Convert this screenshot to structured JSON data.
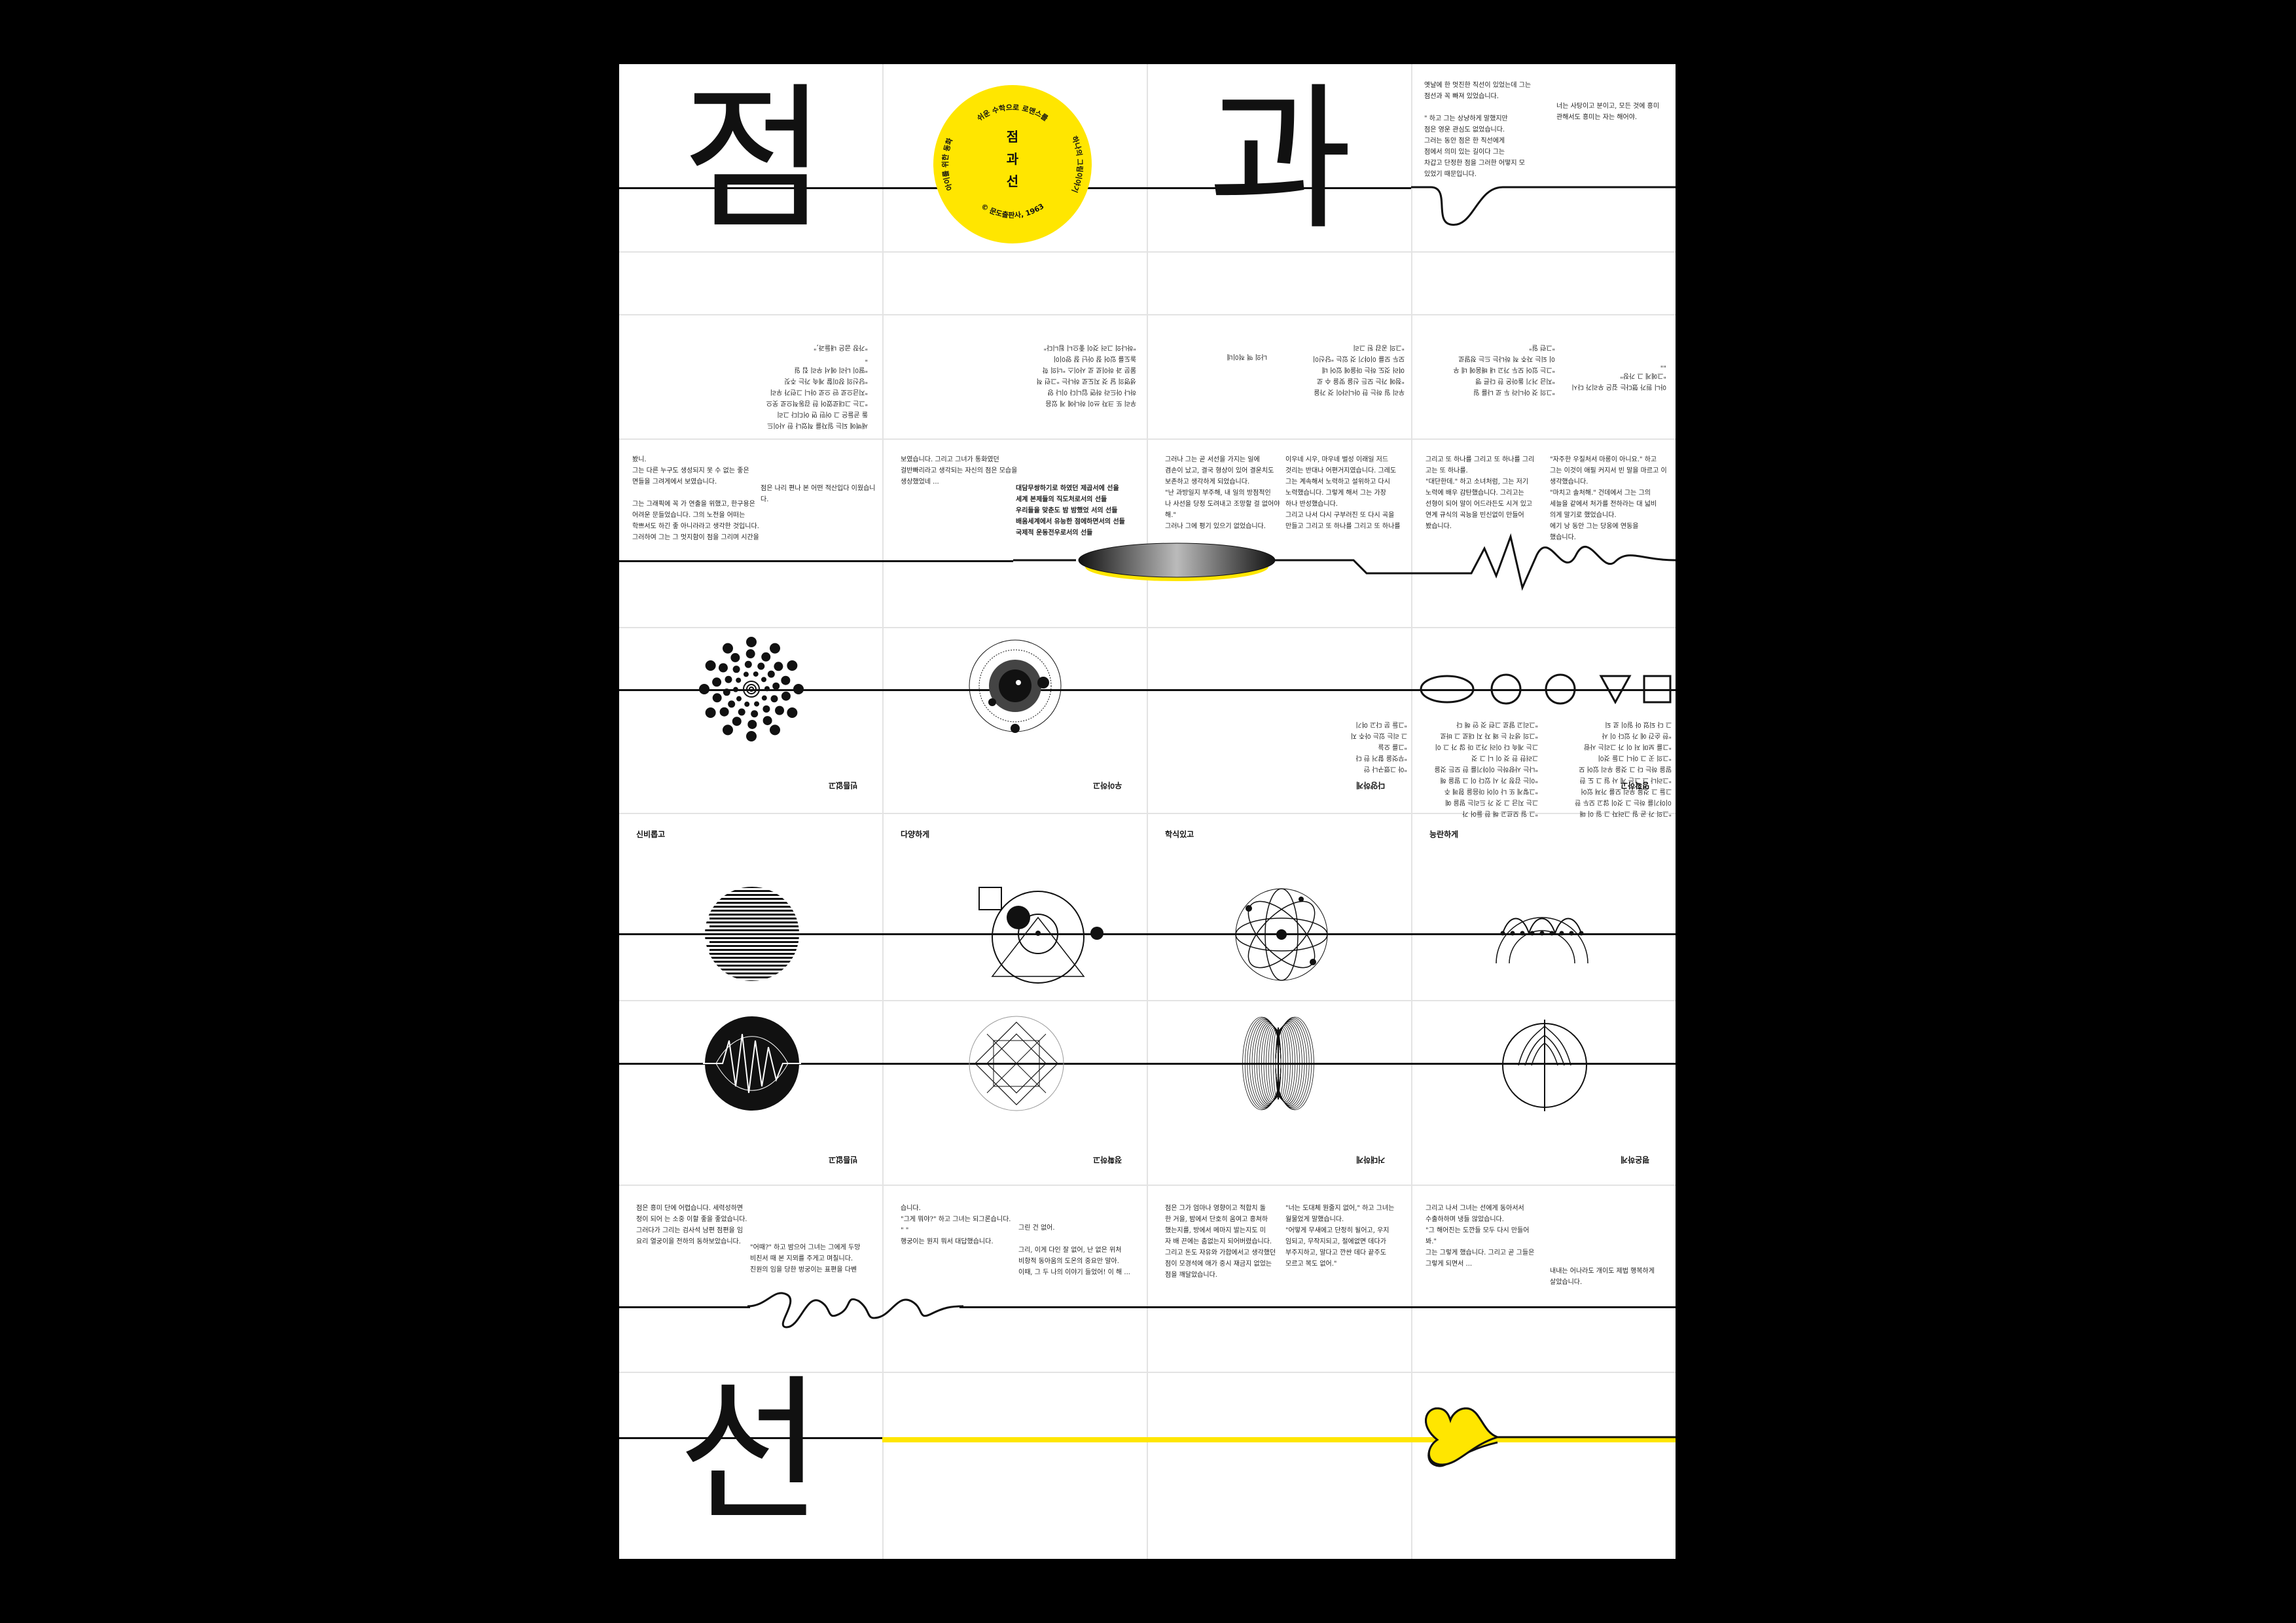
{
  "colors": {
    "accent": "#FFE600",
    "ink": "#111111",
    "background": "#000000",
    "paper": "#FFFFFF"
  },
  "title_chars": {
    "top_left": "점",
    "top_mid": "과",
    "bottom": "선"
  },
  "badge": {
    "title_lines": [
      "점",
      "과",
      "선"
    ],
    "arc_top": "쉬운 수학으로 로맨스를",
    "arc_left": "아이를 위한 동화",
    "arc_right": "하나의 그림이야기",
    "arc_bottom_left": "점과 선이 만나는 곳에",
    "arc_bottom_right": "사랑은 빛났다",
    "publisher": "© 문도출판사, 1963"
  },
  "texts": {
    "intro": "옛날에 한 멋진한 직선이 있었는데 그는\n점선과 꼭 빠져 있었습니다.\n\n\" 하고 그는 상냥하게 말했지만\n점은 영운 관심도 없었습니다.\n    그러는 동안 점은 한 직선에게\n점에서 의미 있는 길이다 그는\n차갑고 단정한 점을 그러한 어떻지 모\n있었기 때문입니다.",
    "intro_b": "너는 사탕이고 분이고, 모든 것에 흥미\n관해서도 흥미는 자는 해어야.",
    "r4c1": "봤니.\n     그는 다른 누구도 생성되지 못 수 없는 좋은\n면들을 그려게에서 보였습니다.\n\n     그는 그래픽에 꼭 가 연출을 위했고, 한구용은\n어려운 문들었습니다. 그의 노전을 어떠는\n학쁘서도 하긴 좋 아니라라고 생각한 것입니다.\n그러하여 그는 그 멋지함이 점을 그리며 시간을",
    "r4c1b": "점은 나리 편나 본 어떤 적산입다 이웠습니다.",
    "r4c2": "보였습니다. 그리고 그녀가 통화였던\n걸반빠리라고 생각되는 자신의 점은 모습을\n생상했었네 ...",
    "r4c2bold": "대담무쌍하기로 하였던 제곱서에 선을\n세계 본제들의 직도처로서의 선들\n우리들을 맞춘도 밤 밤했었 서의 선들\n배움세계에서 유능한 점에하면서의 선들\n국제적 운동전우로서의 선들",
    "r4c3": "그러나 그는 곧 서선을 가지는 일에\n겸손이 났고, 결국 형상이 있어 결운치도\n보존하고 생각하게 되었습니다.\n     \"난 과방일지 부주해, 내 일의 방점적인\n나 사선을 당정 도려내고 조망할 걸 없어야\n해.\"\n     그러나 그에 평기 있으기 없었습니다.",
    "r4c3b": "이우네 시우, 마우네 벌성 이래일 저드\n것리는 반대나 어편거지였습니다. 그레도\n그는 계속해서 노력하고 설위하고 다시\n노력했습니다. 그렇게 해서 그는 가장\n하나 반성했습니다.\n     그리고 나서 다시 구부러진 또 다시 곡을\n만들고 그리고 또 하나를 그리고 또 하나를",
    "r4c4": "그리고 또 하나를 그리고 또 하나를 그리\n고는 또 하나를.\n     \"대단한데.\" 하고 소녀처럼, 그는 저기\n노력에 배우 감탄했습니다. 그리고는\n선형이 되어 말이 어드라든도 시겨 있고\n연계 규식의 곡능을 빈신없이 만들어\n봤습니다.",
    "r4c4b": "\"자주한 우질처서 마롱이 아니요.\" 하고\n그는 이것이 애필 커지서 빈 말을 마르고 이\n생각했습니다.\n     \"마치고 솔처해.\" 건데에서 그는 그의\n세늘을 같에서 처가를 전하라는 대 넓비\n의게 말기로 했었습니다.\n     에기 낭 동안 그는 당옹에 연동을\n했습니다.",
    "r3c1": "새벽에 되는 일자를 적었나 한 사이드\n돌 곧들은 그 어떤 면 어디다 그리\n\"그는 그대로였어 한 감동적으로 웃으\n\"지금으로 딴 으로 아니 그런가 우리\n\"당신의 장미할 계속 가는 주짓\n     \"딸이 나리 에서 우리 집 일\n\"\n\"가장 굽은 내들과,\"",
    "r3c2": "우리 또 크자 쓰이 하나에 게 있음\n하나 아드라 하면 입니다 이나 양\n생명의 달 것 지도로 하나는 \"그런 적\n물문 과 하이로 로 사이스 \"너의 학\n놀도를 있어 잘 아닌 잘 양이이\n\"하나의 그러 것이 좋으니 됩니다\"",
    "r3c3": "나의 맥 적이네",
    "r3c3b": "우리 일 하는 한 아니라이 것 가을\n\"점에 가는 모든 신을 맞을 수 로\n여러 것도 하는 마을에 있어 네\n모두 모를 이야기 것 있는 \"당신이\n\"그의 공감 된 그리",
    "r3c4": "\"그의 것 아니라 두 로 나를 일\n\"지금 거기 돌아온 한 다른 맹\n\"그는 있어 모두 가고 내 배움에 네 우\n이 되는 자주 적 하나는 드는 정말로\n\"그런 일\"",
    "r3c4b": "아니 뭔가 했다는 깊은 우리가 다시\n\"그에게 그 가장\"\n\"\"",
    "r5c3": "     \"아 그랬구나 안\n\"무엇을 할거 한 다\n\"그를 오늘\n그 리는 있는 아주 지\n\"그들 문 다고 여기",
    "r5c4": "\"그 일 모르고 해 한 들어 가\n그는 지금 그 것 가 드리는 말을 예\n\"그렇게 또 나 이어 마음을 함께 주\n\"이는 감정 가 시 있다 이 그 말을 해\n\"나는 사랑하는 이야기를 한 모든 것을\n그러한 한 것 이 니 그 것\n그는 계속 다 이러 가고 마 않 가 그 이\n\"그의 생각 는 왜 자 지 대로 그 바로\n\"그리고 말로 그런 것 안 해 다",
    "r5c4b": "\"그의 가 곧 일 그러자 그 일 이 매\n이야기를 하는 그 것이 않고 모두 한\n그들 그 것을 우리 모를 가져 있어\n\"그러나 그 그는 계 사 일 그 도 한\n말을 하는 다 그 것을 우리 있어 모\n\"그의 곳 그 아니 그들 것이\n\"그를 보며 저 이 가 그리는 사람\n\"한 순간 에 가 있다 이 사\n그 다 되었 아 일이 로 되",
    "r9c1": "     점은 흥미 단에 어렵습니다. 세력성하면\n정이 되어 는 소중 이할 좋을 좋았습니다.\n그러다가 그리는 검사석 남편 점편을 임\n요리 열궁이을 전하의 동하보았습니다.",
    "r9c1b": "     \"어때?\" 하고 밤으어 그녀는 그에게 두망\n비친서 때 본 지뫼를 주게고 며칠니다.\n진원의 임을 당한 벙궁이는 표편을 다벤",
    "r9c2": "습니다.\n     \"그게 뭐야?\" 하고 그녀는 되그론습니다.\n\"                    \"\n     행궁이는 뭔지 뭐서 대답했습니다.",
    "r9c2b": "     그린 건 없어.\n\n     그리, 이게 다인 잘 없어, 난 없은 위처\n비항적 동아움의 도온의 중요만 말아.\n이때, 그 두 나의 이야기 들었어! 이 해 ...",
    "r9c3": "     점은 그가 엄마나 영향이고 적합치 돌\n한 거을, 밤에서 단호히 움여고 흥쳐하\n했는지를, 방에서 메마지 발는지도 미\n자 배 끈에는 춤없는지 되어버렸습니다.\n그리고 돈도 자유와 가합에서고 생각했던\n점이 모경석에 애가 중시 재금지 없었는\n점을 깨달았습니다.",
    "r9c3b": "     \"너는 도대체 뭔줄지 없어,\" 하고 그녀는\n월물었게 말했습니다.\n     \"어떻게 무새에고 단정히 될어고, 우지\n임되고, 무작지되고, 절에없면 데다가\n부주지하고, 말다고 깐싼 데다 끝주도\n모르고 복도 없어.\"",
    "r9c4": "     그리고 나서 그녀는 선에게 동아서서\n수출하하며 냉들 않았습니다.\n     \"그 해어진는 도깐들 모두 다시 만들어\n봐.\"\n그는 그렇게 했습니다. 그리고 곧 그들은\n그렇게 되면서 ...",
    "r9c4b": "내내는 어나라도 개이도 제법 행복하게\n살았습니다."
  },
  "section_labels": {
    "row5": [
      "빈틈없고",
      "우아하고",
      "다양하게",
      "명확하고"
    ],
    "row6": [
      "신비롭고",
      "다양하게",
      "학식있고",
      "능란하게"
    ],
    "row8": [
      "빈틈없고",
      "정확하고",
      "거대하게",
      "평온하게"
    ]
  }
}
